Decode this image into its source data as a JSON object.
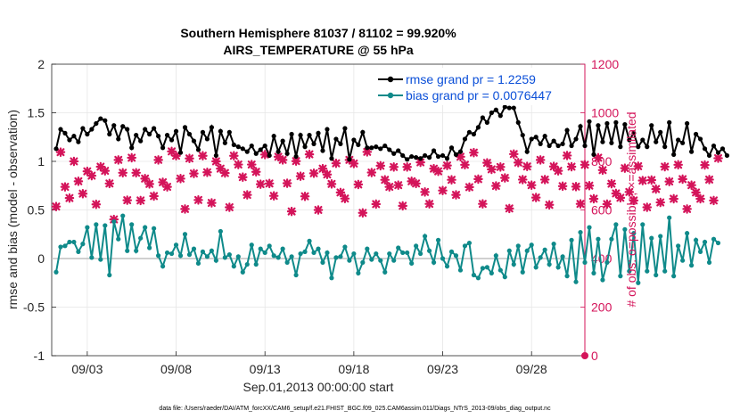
{
  "colors": {
    "rmse": "#000000",
    "bias": "#0f8a8a",
    "obs": "#d4145a",
    "right_axis": "#d4145a",
    "zero_line": "#c0c0c0",
    "legend_text": "#0b4fd8"
  },
  "chart_data": {
    "type": "line",
    "title": "Southern Hemisphere 81037 / 81102 = 99.920%",
    "subtitle": "AIRS_TEMPERATURE @ 55 hPa",
    "xlabel": "Sep.01,2013 00:00:00 start",
    "ylabel_left": "rmse and bias (model - observation)",
    "ylabel_right": "# of obs: o=possible; ×=assimilated",
    "xlim": [
      1,
      31
    ],
    "ylim_left": [
      -1,
      2
    ],
    "ylim_right": [
      0,
      1200
    ],
    "xticks": [
      3,
      8,
      13,
      18,
      23,
      28
    ],
    "xticklabels": [
      "09/03",
      "09/08",
      "09/13",
      "09/18",
      "09/23",
      "09/28"
    ],
    "yticks_left": [
      -1,
      -0.5,
      0,
      0.5,
      1,
      1.5,
      2
    ],
    "yticklabels_left": [
      "-1",
      "-0.5",
      "0",
      "0.5",
      "1",
      "1.5",
      "2"
    ],
    "yticks_right": [
      0,
      200,
      400,
      600,
      800,
      1000,
      1200
    ],
    "yticklabels_right": [
      "0",
      "200",
      "400",
      "600",
      "800",
      "1000",
      "1200"
    ],
    "grid": true,
    "legend_position": "top-right",
    "legend": [
      "rmse grand pr = 1.2259",
      "bias grand pr = 0.0076447"
    ],
    "footnote": "data file: /Users/raeder/DAI/ATM_forcXX/CAM6_setup/f.e21.FHIST_BGC.f09_025.CAM6assim.011/Diags_NTrS_2013-09/obs_diag_output.nc",
    "x_start": 1.25,
    "x_step": 0.25,
    "series": [
      {
        "name": "rmse grand pr = 1.2259",
        "axis": "left",
        "values": [
          1.13,
          1.33,
          1.29,
          1.22,
          1.26,
          1.2,
          1.34,
          1.28,
          1.33,
          1.39,
          1.44,
          1.42,
          1.28,
          1.37,
          1.23,
          1.36,
          1.33,
          1.14,
          1.27,
          1.21,
          1.33,
          1.28,
          1.34,
          1.26,
          1.14,
          1.27,
          1.22,
          1.31,
          1.09,
          1.35,
          1.28,
          1.21,
          1.12,
          1.3,
          1.23,
          1.35,
          1.06,
          1.31,
          1.19,
          1.3,
          1.17,
          1.15,
          1.13,
          1.1,
          1.16,
          1.08,
          1.12,
          1.16,
          1.06,
          1.26,
          1.1,
          1.21,
          1.08,
          1.28,
          1.05,
          1.27,
          1.15,
          1.27,
          1.18,
          1.29,
          1.11,
          1.33,
          1.03,
          1.23,
          1.18,
          1.34,
          1.02,
          1.22,
          1.17,
          1.3,
          1.14,
          1.14,
          1.15,
          1.13,
          1.16,
          1.12,
          1.08,
          1.11,
          1.06,
          1.02,
          1.05,
          1.04,
          1.03,
          1.06,
          1.04,
          1.11,
          1.05,
          1.06,
          1.03,
          1.14,
          1.07,
          1.1,
          1.23,
          1.3,
          1.28,
          1.35,
          1.45,
          1.4,
          1.5,
          1.53,
          1.47,
          1.56,
          1.55,
          1.55,
          1.4,
          1.27,
          1.1,
          1.23,
          1.25,
          1.18,
          1.26,
          1.16,
          1.21,
          1.16,
          1.18,
          1.32,
          1.16,
          1.23,
          1.36,
          1.16,
          1.41,
          1.07,
          1.37,
          1.2,
          1.39,
          1.19,
          1.4,
          1.15,
          1.38,
          1.22,
          1.29,
          1.15,
          1.22,
          1.15,
          1.37,
          1.2,
          1.3,
          1.15,
          1.4,
          1.07,
          1.22,
          1.19,
          1.39,
          1.1,
          1.28,
          1.23,
          1.13,
          1.06,
          1.16,
          1.09,
          1.13,
          1.06
        ]
      },
      {
        "name": "bias grand pr = 0.0076447",
        "axis": "left",
        "values": [
          -0.14,
          0.12,
          0.13,
          0.17,
          0.17,
          0.07,
          0.15,
          0.32,
          0.01,
          0.35,
          -0.01,
          0.34,
          -0.17,
          0.38,
          0.2,
          0.44,
          0.08,
          0.35,
          0.08,
          0.21,
          0.32,
          0.11,
          0.31,
          0.03,
          -0.08,
          0.06,
          0.05,
          0.14,
          0.03,
          0.25,
          0.04,
          0.1,
          -0.05,
          0.07,
          0.02,
          0.08,
          -0.02,
          0.28,
          0.01,
          0.04,
          -0.08,
          0.02,
          -0.14,
          -0.06,
          0.14,
          -0.06,
          0.1,
          0.06,
          0.13,
          0.03,
          0.01,
          0.1,
          -0.04,
          0.02,
          -0.17,
          0.05,
          0.07,
          0.18,
          0.06,
          0.1,
          -0.04,
          0.06,
          -0.2,
          0.01,
          0.02,
          0.12,
          -0.02,
          0.05,
          -0.15,
          -0.04,
          0.1,
          -0.01,
          0.05,
          -0.02,
          -0.14,
          0.05,
          -0.02,
          0.11,
          0.06,
          0.06,
          -0.05,
          0.13,
          0.05,
          0.23,
          0.08,
          -0.04,
          0.19,
          0.0,
          -0.08,
          0.07,
          0.03,
          -0.12,
          0.13,
          0.16,
          -0.17,
          -0.2,
          -0.1,
          -0.09,
          -0.15,
          0.03,
          -0.12,
          -0.19,
          0.08,
          -0.06,
          0.13,
          -0.14,
          0.08,
          0.14,
          -0.09,
          0.01,
          0.09,
          -0.06,
          0.15,
          -0.09,
          0.02,
          -0.18,
          0.19,
          -0.24,
          0.27,
          -0.04,
          0.32,
          -0.15,
          0.2,
          -0.22,
          -0.04,
          0.2,
          0.35,
          -0.18,
          0.3,
          -0.13,
          0.26,
          -0.25,
          0.35,
          -0.13,
          0.21,
          -0.17,
          0.23,
          -0.13,
          0.42,
          -0.18,
          0.13,
          -0.02,
          0.26,
          -0.07,
          0.19,
          0.07,
          0.17,
          -0.04,
          0.2,
          0.16
        ]
      },
      {
        "name": "",
        "axis": "right",
        "marker": "x",
        "values": [
          614,
          838,
          695,
          649,
          800,
          718,
          667,
          759,
          741,
          623,
          778,
          761,
          709,
          561,
          806,
          753,
          640,
          815,
          753,
          639,
          729,
          707,
          657,
          806,
          714,
          695,
          841,
          823,
          729,
          604,
          812,
          750,
          641,
          823,
          755,
          629,
          800,
          770,
          752,
          611,
          823,
          787,
          735,
          662,
          787,
          757,
          706,
          828,
          709,
          658,
          819,
          806,
          710,
          594,
          801,
          739,
          656,
          829,
          751,
          600,
          770,
          746,
          707,
          792,
          672,
          647,
          806,
          791,
          705,
          588,
          839,
          754,
          624,
          782,
          724,
          695,
          777,
          702,
          617,
          777,
          718,
          709,
          796,
          674,
          625,
          770,
          759,
          680,
          783,
          724,
          662,
          819,
          786,
          694,
          836,
          727,
          625,
          794,
          767,
          699,
          777,
          732,
          606,
          830,
          795,
          725,
          779,
          702,
          651,
          806,
          725,
          621,
          779,
          761,
          698,
          824,
          778,
          696,
          625,
          786,
          700,
          646,
          815,
          764,
          624,
          708,
          668,
          650,
          772,
          674,
          639,
          780,
          721,
          611,
          723,
          686,
          631,
          778,
          717,
          646,
          786,
          727,
          604,
          702,
          672,
          646,
          785,
          725,
          639,
          813
        ]
      }
    ]
  }
}
